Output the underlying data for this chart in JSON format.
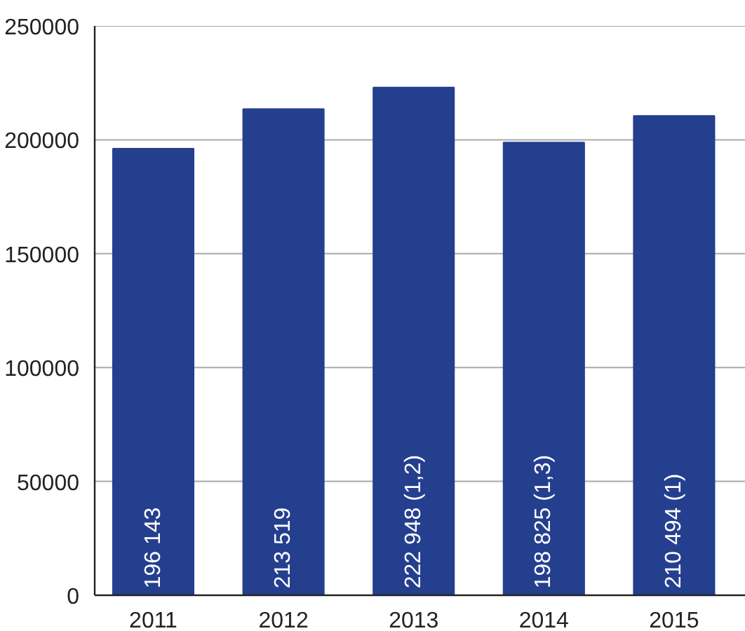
{
  "chart_data": {
    "type": "bar",
    "categories": [
      "2011",
      "2012",
      "2013",
      "2014",
      "2015"
    ],
    "values": [
      196143,
      213519,
      222948,
      198825,
      210494
    ],
    "value_labels": [
      "196 143",
      "213 519",
      "222 948 (1,2)",
      "198 825 (1,3)",
      "210 494 (1)"
    ],
    "color": "#253f8f",
    "ylim": [
      0,
      250000
    ],
    "yticks": [
      0,
      50000,
      100000,
      150000,
      200000,
      250000
    ],
    "grid": "y"
  }
}
